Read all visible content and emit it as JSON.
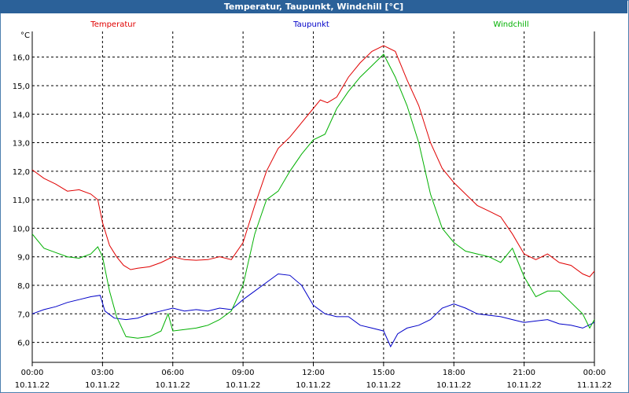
{
  "window": {
    "title": "Temperatur, Taupunkt, Windchill [°C]"
  },
  "chart_data": {
    "type": "line",
    "title": "Temperatur, Taupunkt, Windchill [°C]",
    "yunit": "°C",
    "ylim": [
      5.3,
      16.9
    ],
    "xlim": [
      0,
      24
    ],
    "grid": true,
    "legend": [
      "Temperatur",
      "Taupunkt",
      "Windchill"
    ],
    "yticks": [
      "6,0",
      "7,0",
      "8,0",
      "9,0",
      "10,0",
      "11,0",
      "12,0",
      "13,0",
      "14,0",
      "15,0",
      "16,0"
    ],
    "ytick_values": [
      6,
      7,
      8,
      9,
      10,
      11,
      12,
      13,
      14,
      15,
      16
    ],
    "xticks": [
      {
        "time": "00:00",
        "date": "10.11.22",
        "h": 0
      },
      {
        "time": "03:00",
        "date": "10.11.22",
        "h": 3
      },
      {
        "time": "06:00",
        "date": "10.11.22",
        "h": 6
      },
      {
        "time": "09:00",
        "date": "10.11.22",
        "h": 9
      },
      {
        "time": "12:00",
        "date": "10.11.22",
        "h": 12
      },
      {
        "time": "15:00",
        "date": "10.11.22",
        "h": 15
      },
      {
        "time": "18:00",
        "date": "10.11.22",
        "h": 18
      },
      {
        "time": "21:00",
        "date": "10.11.22",
        "h": 21
      },
      {
        "time": "00:00",
        "date": "11.11.22",
        "h": 24
      }
    ],
    "series": [
      {
        "name": "Temperatur",
        "color": "#e00000",
        "points": [
          [
            0,
            12.05
          ],
          [
            0.5,
            11.75
          ],
          [
            1,
            11.55
          ],
          [
            1.5,
            11.3
          ],
          [
            2,
            11.35
          ],
          [
            2.5,
            11.2
          ],
          [
            2.8,
            11.0
          ],
          [
            3.0,
            10.2
          ],
          [
            3.3,
            9.4
          ],
          [
            3.6,
            9.0
          ],
          [
            3.9,
            8.7
          ],
          [
            4.2,
            8.55
          ],
          [
            4.5,
            8.6
          ],
          [
            5.0,
            8.65
          ],
          [
            5.5,
            8.8
          ],
          [
            6.0,
            9.0
          ],
          [
            6.5,
            8.9
          ],
          [
            7.0,
            8.88
          ],
          [
            7.5,
            8.9
          ],
          [
            8.0,
            9.0
          ],
          [
            8.5,
            8.9
          ],
          [
            9.0,
            9.5
          ],
          [
            9.5,
            10.8
          ],
          [
            10.0,
            12.0
          ],
          [
            10.5,
            12.8
          ],
          [
            11.0,
            13.2
          ],
          [
            11.5,
            13.7
          ],
          [
            12.0,
            14.2
          ],
          [
            12.3,
            14.5
          ],
          [
            12.6,
            14.4
          ],
          [
            13.0,
            14.6
          ],
          [
            13.5,
            15.3
          ],
          [
            14.0,
            15.8
          ],
          [
            14.5,
            16.2
          ],
          [
            15.0,
            16.4
          ],
          [
            15.5,
            16.2
          ],
          [
            16.0,
            15.2
          ],
          [
            16.5,
            14.3
          ],
          [
            17.0,
            13.0
          ],
          [
            17.5,
            12.1
          ],
          [
            18.0,
            11.6
          ],
          [
            18.5,
            11.2
          ],
          [
            19.0,
            10.8
          ],
          [
            19.5,
            10.6
          ],
          [
            20.0,
            10.4
          ],
          [
            20.5,
            9.8
          ],
          [
            21.0,
            9.1
          ],
          [
            21.5,
            8.9
          ],
          [
            22.0,
            9.1
          ],
          [
            22.5,
            8.8
          ],
          [
            23.0,
            8.7
          ],
          [
            23.5,
            8.4
          ],
          [
            23.8,
            8.3
          ],
          [
            24.0,
            8.5
          ]
        ]
      },
      {
        "name": "Taupunkt",
        "color": "#0000c8",
        "points": [
          [
            0,
            7.0
          ],
          [
            0.5,
            7.15
          ],
          [
            1,
            7.25
          ],
          [
            1.5,
            7.4
          ],
          [
            2,
            7.5
          ],
          [
            2.5,
            7.6
          ],
          [
            2.9,
            7.65
          ],
          [
            3.1,
            7.1
          ],
          [
            3.5,
            6.85
          ],
          [
            4.0,
            6.8
          ],
          [
            4.5,
            6.85
          ],
          [
            5.0,
            7.0
          ],
          [
            5.5,
            7.1
          ],
          [
            6.0,
            7.2
          ],
          [
            6.5,
            7.1
          ],
          [
            7.0,
            7.15
          ],
          [
            7.5,
            7.1
          ],
          [
            8.0,
            7.2
          ],
          [
            8.5,
            7.15
          ],
          [
            9.0,
            7.5
          ],
          [
            9.5,
            7.8
          ],
          [
            10.0,
            8.1
          ],
          [
            10.5,
            8.4
          ],
          [
            11.0,
            8.35
          ],
          [
            11.5,
            8.0
          ],
          [
            12.0,
            7.3
          ],
          [
            12.5,
            7.0
          ],
          [
            13.0,
            6.9
          ],
          [
            13.5,
            6.9
          ],
          [
            14.0,
            6.6
          ],
          [
            14.5,
            6.5
          ],
          [
            15.0,
            6.4
          ],
          [
            15.3,
            5.85
          ],
          [
            15.6,
            6.3
          ],
          [
            16.0,
            6.5
          ],
          [
            16.5,
            6.6
          ],
          [
            17.0,
            6.8
          ],
          [
            17.5,
            7.2
          ],
          [
            18.0,
            7.35
          ],
          [
            18.5,
            7.2
          ],
          [
            19.0,
            7.0
          ],
          [
            19.5,
            6.95
          ],
          [
            20.0,
            6.9
          ],
          [
            20.5,
            6.8
          ],
          [
            21.0,
            6.7
          ],
          [
            21.5,
            6.75
          ],
          [
            22.0,
            6.8
          ],
          [
            22.5,
            6.65
          ],
          [
            23.0,
            6.6
          ],
          [
            23.5,
            6.5
          ],
          [
            24.0,
            6.7
          ]
        ]
      },
      {
        "name": "Windchill",
        "color": "#00b000",
        "points": [
          [
            0,
            9.8
          ],
          [
            0.5,
            9.3
          ],
          [
            1,
            9.15
          ],
          [
            1.5,
            9.0
          ],
          [
            2,
            8.95
          ],
          [
            2.5,
            9.1
          ],
          [
            2.8,
            9.35
          ],
          [
            3.0,
            9.0
          ],
          [
            3.3,
            7.8
          ],
          [
            3.6,
            6.9
          ],
          [
            4.0,
            6.2
          ],
          [
            4.5,
            6.15
          ],
          [
            5.0,
            6.2
          ],
          [
            5.5,
            6.4
          ],
          [
            5.8,
            7.0
          ],
          [
            6.0,
            6.4
          ],
          [
            6.5,
            6.45
          ],
          [
            7.0,
            6.5
          ],
          [
            7.5,
            6.6
          ],
          [
            8.0,
            6.8
          ],
          [
            8.5,
            7.1
          ],
          [
            9.0,
            8.0
          ],
          [
            9.5,
            9.8
          ],
          [
            10.0,
            11.0
          ],
          [
            10.5,
            11.3
          ],
          [
            11.0,
            12.0
          ],
          [
            11.5,
            12.6
          ],
          [
            12.0,
            13.1
          ],
          [
            12.5,
            13.3
          ],
          [
            13.0,
            14.2
          ],
          [
            13.5,
            14.8
          ],
          [
            14.0,
            15.3
          ],
          [
            14.5,
            15.7
          ],
          [
            15.0,
            16.1
          ],
          [
            15.5,
            15.3
          ],
          [
            16.0,
            14.3
          ],
          [
            16.5,
            13.0
          ],
          [
            17.0,
            11.2
          ],
          [
            17.5,
            10.0
          ],
          [
            18.0,
            9.5
          ],
          [
            18.5,
            9.2
          ],
          [
            19.0,
            9.1
          ],
          [
            19.5,
            9.0
          ],
          [
            20.0,
            8.8
          ],
          [
            20.5,
            9.3
          ],
          [
            21.0,
            8.3
          ],
          [
            21.5,
            7.6
          ],
          [
            22.0,
            7.8
          ],
          [
            22.5,
            7.8
          ],
          [
            23.0,
            7.4
          ],
          [
            23.5,
            7.0
          ],
          [
            23.8,
            6.5
          ],
          [
            24.0,
            6.8
          ]
        ]
      }
    ]
  }
}
